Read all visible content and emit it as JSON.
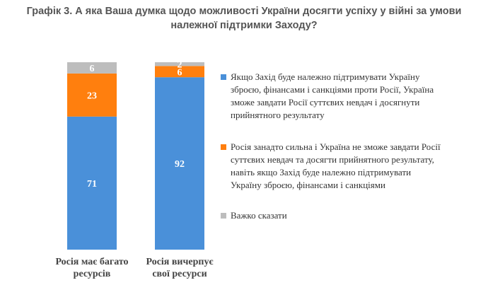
{
  "chart_data": {
    "type": "bar",
    "stacked": true,
    "title": "Графік 3. А яка Ваша думка щодо можливості України досягти успіху у війні за умови належної підтримки Заходу?",
    "categories": [
      "Росія має багато ресурсів",
      "Росія вичерпує свої ресурси"
    ],
    "series": [
      {
        "name": "Якщо Захід буде належно підтримувати Україну зброєю, фінансами і санкціями проти Росії, Україна зможе завдати Росії суттєвих невдач і досягнути прийнятного результату",
        "color": "#4a90d9",
        "values": [
          71,
          92
        ]
      },
      {
        "name": "Росія занадто сильна і Україна не зможе завдати Росії суттєвих невдач та досягти прийнятного результату, навіть якщо Захід буде належно підтримувати Україну зброєю, фінансами і санкціями",
        "color": "#ff7f0e",
        "values": [
          23,
          6
        ]
      },
      {
        "name": "Важко сказати",
        "color": "#bdbdbd",
        "values": [
          6,
          2
        ]
      }
    ],
    "ylim": [
      0,
      100
    ],
    "grid": false,
    "legend_position": "right"
  }
}
